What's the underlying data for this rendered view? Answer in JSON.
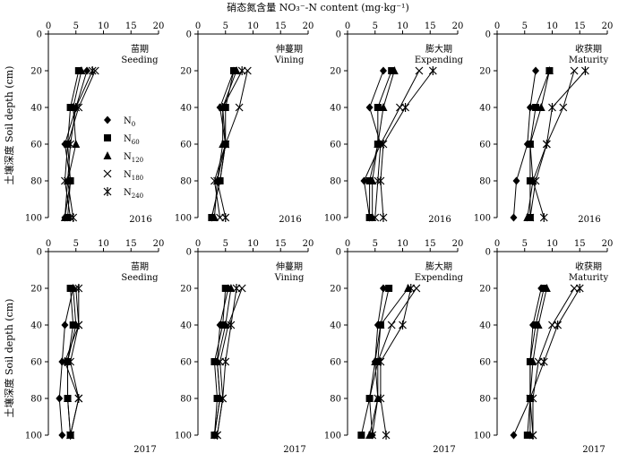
{
  "figure": {
    "top_title": "硝态氮含量 NO₃⁻-N content (mg·kg⁻¹)",
    "ylabel": "土壤深度 Soil depth (cm)"
  },
  "chart_data": [
    {
      "type": "line",
      "year": "2016",
      "stage_cn": "苗期",
      "stage_en": "Seeding",
      "xlim": [
        0,
        20
      ],
      "ylim": [
        0,
        100
      ],
      "depths": [
        20,
        40,
        60,
        80,
        100
      ],
      "xticks": [
        0,
        5,
        10,
        15,
        20
      ],
      "yticks": [
        0,
        20,
        40,
        60,
        80,
        100
      ],
      "series": [
        {
          "name": "N0",
          "values": [
            7.0,
            5.0,
            3.0,
            4.0,
            3.0
          ]
        },
        {
          "name": "N60",
          "values": [
            5.5,
            4.0,
            3.5,
            4.0,
            3.5
          ]
        },
        {
          "name": "N120",
          "values": [
            6.0,
            4.5,
            5.0,
            3.5,
            3.0
          ]
        },
        {
          "name": "N180",
          "values": [
            8.5,
            5.5,
            3.5,
            3.0,
            4.0
          ]
        },
        {
          "name": "N240",
          "values": [
            8.0,
            5.0,
            4.0,
            3.5,
            4.5
          ]
        }
      ]
    },
    {
      "type": "line",
      "year": "2016",
      "stage_cn": "伸蔓期",
      "stage_en": "Vining",
      "xlim": [
        0,
        20
      ],
      "ylim": [
        0,
        100
      ],
      "depths": [
        20,
        40,
        60,
        80,
        100
      ],
      "xticks": [
        0,
        5,
        10,
        15,
        20
      ],
      "yticks": [
        0,
        20,
        40,
        60,
        80,
        100
      ],
      "series": [
        {
          "name": "N0",
          "values": [
            6.5,
            4.0,
            5.0,
            4.0,
            2.5
          ]
        },
        {
          "name": "N60",
          "values": [
            6.5,
            5.0,
            5.0,
            4.0,
            2.5
          ]
        },
        {
          "name": "N120",
          "values": [
            7.0,
            4.5,
            4.5,
            3.5,
            3.0
          ]
        },
        {
          "name": "N180",
          "values": [
            9.0,
            7.5,
            5.0,
            3.0,
            4.0
          ]
        },
        {
          "name": "N240",
          "values": [
            8.0,
            4.5,
            5.0,
            3.5,
            5.0
          ]
        }
      ]
    },
    {
      "type": "line",
      "year": "2016",
      "stage_cn": "膨大期",
      "stage_en": "Expending",
      "xlim": [
        0,
        20
      ],
      "ylim": [
        0,
        100
      ],
      "depths": [
        20,
        40,
        60,
        80,
        100
      ],
      "xticks": [
        0,
        5,
        10,
        15,
        20
      ],
      "yticks": [
        0,
        20,
        40,
        60,
        80,
        100
      ],
      "series": [
        {
          "name": "N0",
          "values": [
            6.5,
            4.0,
            6.0,
            3.0,
            4.0
          ]
        },
        {
          "name": "N60",
          "values": [
            8.0,
            5.5,
            5.5,
            4.0,
            4.0
          ]
        },
        {
          "name": "N120",
          "values": [
            8.5,
            6.5,
            5.5,
            4.5,
            4.5
          ]
        },
        {
          "name": "N180",
          "values": [
            13.0,
            9.5,
            6.0,
            5.5,
            5.0
          ]
        },
        {
          "name": "N240",
          "values": [
            15.5,
            10.5,
            6.5,
            6.0,
            6.5
          ]
        }
      ]
    },
    {
      "type": "line",
      "year": "2016",
      "stage_cn": "收获期",
      "stage_en": "Maturity",
      "xlim": [
        0,
        20
      ],
      "ylim": [
        0,
        100
      ],
      "depths": [
        20,
        40,
        60,
        80,
        100
      ],
      "xticks": [
        0,
        5,
        10,
        15,
        20
      ],
      "yticks": [
        0,
        20,
        40,
        60,
        80,
        100
      ],
      "series": [
        {
          "name": "N0",
          "values": [
            7.0,
            6.0,
            5.5,
            3.5,
            3.0
          ]
        },
        {
          "name": "N60",
          "values": [
            9.5,
            7.0,
            6.0,
            6.0,
            6.0
          ]
        },
        {
          "name": "N120",
          "values": [
            9.5,
            8.0,
            6.0,
            6.5,
            5.5
          ]
        },
        {
          "name": "N180",
          "values": [
            14.0,
            12.0,
            9.0,
            7.0,
            6.0
          ]
        },
        {
          "name": "N240",
          "values": [
            16.0,
            10.0,
            9.0,
            6.5,
            8.5
          ]
        }
      ]
    },
    {
      "type": "line",
      "year": "2017",
      "stage_cn": "苗期",
      "stage_en": "Seeding",
      "xlim": [
        0,
        20
      ],
      "ylim": [
        0,
        100
      ],
      "depths": [
        20,
        40,
        60,
        80,
        100
      ],
      "xticks": [
        0,
        5,
        10,
        15,
        20
      ],
      "yticks": [
        0,
        20,
        40,
        60,
        80,
        100
      ],
      "series": [
        {
          "name": "N0",
          "values": [
            4.5,
            3.0,
            2.5,
            2.0,
            2.5
          ]
        },
        {
          "name": "N60",
          "values": [
            4.0,
            4.5,
            3.5,
            3.5,
            4.0
          ]
        },
        {
          "name": "N120",
          "values": [
            4.5,
            5.0,
            3.5,
            3.5,
            4.0
          ]
        },
        {
          "name": "N180",
          "values": [
            5.0,
            5.5,
            4.0,
            5.5,
            4.0
          ]
        },
        {
          "name": "N240",
          "values": [
            5.5,
            5.5,
            3.0,
            5.5,
            4.0
          ]
        }
      ]
    },
    {
      "type": "line",
      "year": "2017",
      "stage_cn": "伸蔓期",
      "stage_en": "Vining",
      "xlim": [
        0,
        20
      ],
      "ylim": [
        0,
        100
      ],
      "depths": [
        20,
        40,
        60,
        80,
        100
      ],
      "xticks": [
        0,
        5,
        10,
        15,
        20
      ],
      "yticks": [
        0,
        20,
        40,
        60,
        80,
        100
      ],
      "series": [
        {
          "name": "N0",
          "values": [
            5.5,
            4.0,
            3.5,
            4.0,
            3.0
          ]
        },
        {
          "name": "N60",
          "values": [
            5.0,
            4.5,
            3.0,
            3.5,
            3.0
          ]
        },
        {
          "name": "N120",
          "values": [
            6.0,
            5.0,
            3.5,
            4.0,
            3.0
          ]
        },
        {
          "name": "N180",
          "values": [
            8.0,
            5.5,
            4.0,
            4.5,
            3.5
          ]
        },
        {
          "name": "N240",
          "values": [
            7.0,
            6.0,
            5.0,
            4.5,
            3.5
          ]
        }
      ]
    },
    {
      "type": "line",
      "year": "2017",
      "stage_cn": "膨大期",
      "stage_en": "Expending",
      "xlim": [
        0,
        20
      ],
      "ylim": [
        0,
        100
      ],
      "depths": [
        20,
        40,
        60,
        80,
        100
      ],
      "xticks": [
        0,
        5,
        10,
        15,
        20
      ],
      "yticks": [
        0,
        20,
        40,
        60,
        80,
        100
      ],
      "series": [
        {
          "name": "N0",
          "values": [
            6.5,
            5.5,
            5.0,
            4.0,
            4.5
          ]
        },
        {
          "name": "N60",
          "values": [
            7.5,
            6.0,
            5.5,
            4.0,
            2.5
          ]
        },
        {
          "name": "N120",
          "values": [
            11.0,
            6.0,
            5.0,
            5.5,
            4.0
          ]
        },
        {
          "name": "N180",
          "values": [
            12.5,
            8.0,
            5.5,
            5.5,
            4.5
          ]
        },
        {
          "name": "N240",
          "values": [
            11.5,
            10.0,
            6.0,
            6.0,
            7.0
          ]
        }
      ]
    },
    {
      "type": "line",
      "year": "2017",
      "stage_cn": "收获期",
      "stage_en": "Maturity",
      "xlim": [
        0,
        20
      ],
      "ylim": [
        0,
        100
      ],
      "depths": [
        20,
        40,
        60,
        80,
        100
      ],
      "xticks": [
        0,
        5,
        10,
        15,
        20
      ],
      "yticks": [
        0,
        20,
        40,
        60,
        80,
        100
      ],
      "series": [
        {
          "name": "N0",
          "values": [
            8.0,
            6.5,
            6.0,
            6.0,
            3.0
          ]
        },
        {
          "name": "N60",
          "values": [
            8.5,
            7.0,
            6.0,
            6.0,
            5.5
          ]
        },
        {
          "name": "N120",
          "values": [
            9.0,
            7.5,
            6.5,
            6.0,
            6.0
          ]
        },
        {
          "name": "N180",
          "values": [
            14.0,
            10.0,
            7.5,
            6.5,
            6.5
          ]
        },
        {
          "name": "N240",
          "values": [
            15.0,
            11.0,
            8.5,
            6.0,
            6.5
          ]
        }
      ]
    }
  ],
  "legend": {
    "entries": [
      {
        "marker": "diamond",
        "base": "N",
        "sub": "0"
      },
      {
        "marker": "square",
        "base": "N",
        "sub": "60"
      },
      {
        "marker": "triangle",
        "base": "N",
        "sub": "120"
      },
      {
        "marker": "cross",
        "base": "N",
        "sub": "180"
      },
      {
        "marker": "star",
        "base": "N",
        "sub": "240"
      }
    ]
  },
  "marker_by_series": {
    "N0": "diamond",
    "N60": "square",
    "N120": "triangle",
    "N180": "cross",
    "N240": "star"
  },
  "style": {
    "line_color": "#000000",
    "axis_color": "#000000",
    "background": "#ffffff"
  }
}
